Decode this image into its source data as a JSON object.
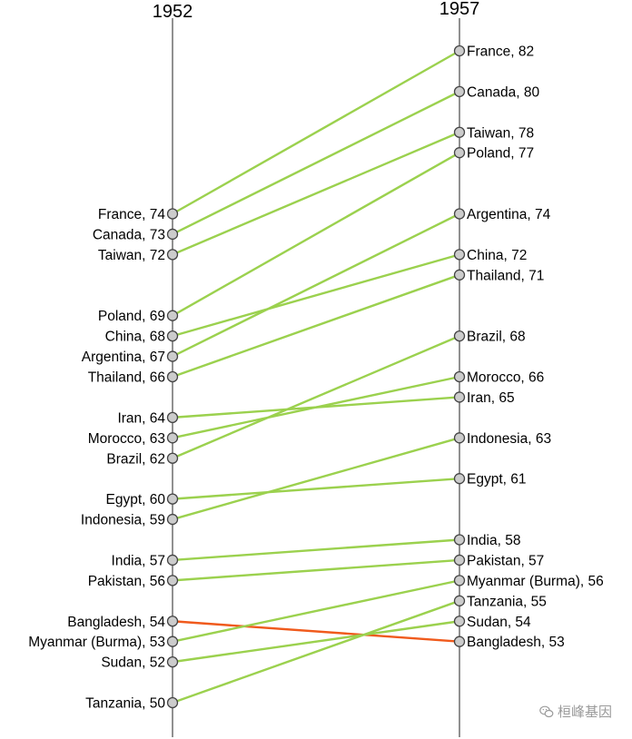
{
  "chart_data": {
    "type": "slope",
    "axes": [
      "1952",
      "1957"
    ],
    "ylim": [
      49,
      83
    ],
    "colors": {
      "increase": "#9bd14e",
      "decrease": "#f05a1c",
      "axis": "#555555",
      "point_fill": "#cccccc",
      "point_stroke": "#444444"
    },
    "series": [
      {
        "name": "France",
        "start": 74,
        "end": 82,
        "start_label": "France, 74",
        "end_label": "France, 82"
      },
      {
        "name": "Canada",
        "start": 73,
        "end": 80,
        "start_label": "Canada, 73",
        "end_label": "Canada, 80"
      },
      {
        "name": "Taiwan",
        "start": 72,
        "end": 78,
        "start_label": "Taiwan, 72",
        "end_label": "Taiwan, 78"
      },
      {
        "name": "Poland",
        "start": 69,
        "end": 77,
        "start_label": "Poland, 69",
        "end_label": "Poland, 77"
      },
      {
        "name": "China",
        "start": 68,
        "end": 72,
        "start_label": "China, 68",
        "end_label": "China, 72"
      },
      {
        "name": "Argentina",
        "start": 67,
        "end": 74,
        "start_label": "Argentina, 67",
        "end_label": "Argentina, 74"
      },
      {
        "name": "Thailand",
        "start": 66,
        "end": 71,
        "start_label": "Thailand, 66",
        "end_label": "Thailand, 71"
      },
      {
        "name": "Iran",
        "start": 64,
        "end": 65,
        "start_label": "Iran, 64",
        "end_label": "Iran, 65"
      },
      {
        "name": "Morocco",
        "start": 63,
        "end": 66,
        "start_label": "Morocco, 63",
        "end_label": "Morocco, 66"
      },
      {
        "name": "Brazil",
        "start": 62,
        "end": 68,
        "start_label": "Brazil, 62",
        "end_label": "Brazil, 68"
      },
      {
        "name": "Egypt",
        "start": 60,
        "end": 61,
        "start_label": "Egypt, 60",
        "end_label": "Egypt, 61"
      },
      {
        "name": "Indonesia",
        "start": 59,
        "end": 63,
        "start_label": "Indonesia, 59",
        "end_label": "Indonesia, 63"
      },
      {
        "name": "India",
        "start": 57,
        "end": 58,
        "start_label": "India, 57",
        "end_label": "India, 58"
      },
      {
        "name": "Pakistan",
        "start": 56,
        "end": 57,
        "start_label": "Pakistan, 56",
        "end_label": "Pakistan, 57"
      },
      {
        "name": "Bangladesh",
        "start": 54,
        "end": 53,
        "start_label": "Bangladesh, 54",
        "end_label": "Bangladesh, 53"
      },
      {
        "name": "Myanmar (Burma)",
        "start": 53,
        "end": 56,
        "start_label": "Myanmar (Burma), 53",
        "end_label": "Myanmar (Burma), 56"
      },
      {
        "name": "Sudan",
        "start": 52,
        "end": 54,
        "start_label": "Sudan, 52",
        "end_label": "Sudan, 54"
      },
      {
        "name": "Tanzania",
        "start": 50,
        "end": 55,
        "start_label": "Tanzania, 50",
        "end_label": "Tanzania, 55"
      }
    ]
  },
  "watermark": {
    "text": "桓峰基因",
    "icon": "wechat-icon"
  }
}
